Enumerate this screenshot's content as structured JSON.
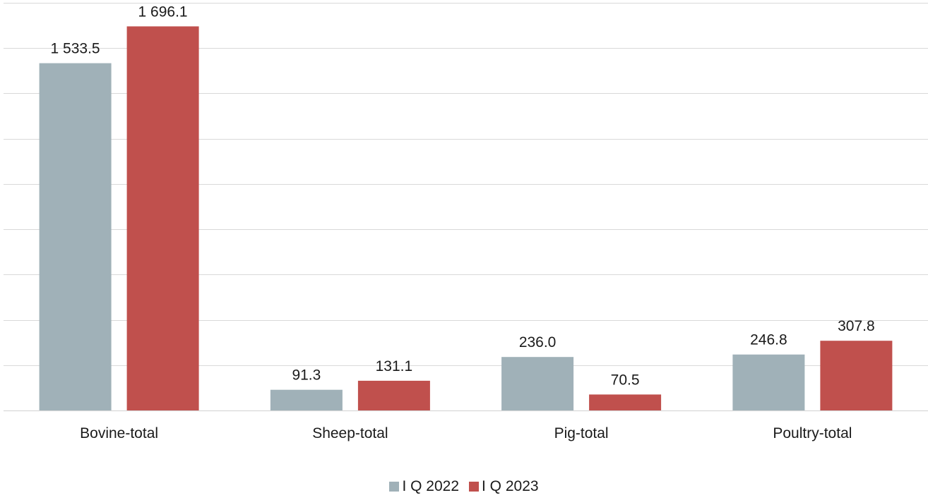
{
  "chart_data": {
    "type": "bar",
    "categories": [
      "Bovine-total",
      "Sheep-total",
      "Pig-total",
      "Poultry-total"
    ],
    "series": [
      {
        "name": "I Q 2022",
        "values": [
          1533.5,
          91.3,
          236.0,
          246.8
        ],
        "labels": [
          "1 533.5",
          "91.3",
          "236.0",
          "246.8"
        ],
        "color": "#a0b1b8"
      },
      {
        "name": "I Q 2023",
        "values": [
          1696.1,
          131.1,
          70.5,
          307.8
        ],
        "labels": [
          "1 696.1",
          "131.1",
          "70.5",
          "307.8"
        ],
        "color": "#c0504d"
      }
    ],
    "ylim": [
      0,
      1800
    ],
    "y_gridlines": [
      0,
      200,
      400,
      600,
      800,
      1000,
      1200,
      1400,
      1600,
      1800
    ],
    "grid": true,
    "legend_placement": "bottom"
  }
}
